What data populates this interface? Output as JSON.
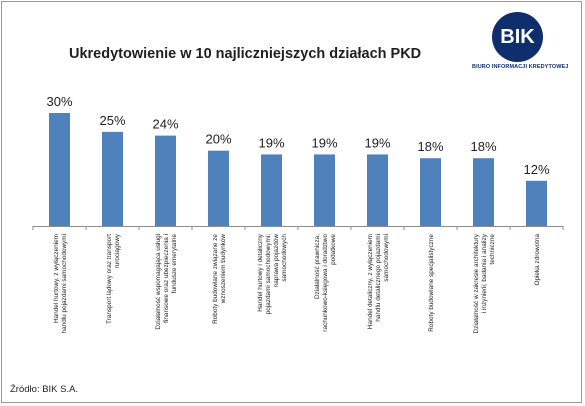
{
  "chart_data": {
    "type": "bar",
    "title": "Ukredytowienie w 10 najliczniejszych działach PKD",
    "categories": [
      [
        "Handel hurtowy, z wyłączeniem",
        "handlu pojazdami samochodowymi"
      ],
      [
        "Transport lądowy oraz transport",
        "rurociągowy"
      ],
      [
        "Działalność wspomagająca usługi",
        "finansowe oraz ubezpieczenia i",
        "fundusze emerytalne"
      ],
      [
        "Roboty budowlane związane ze",
        "wznoszeniem budynków"
      ],
      [
        "Handel hurtowy i detaliczny",
        "pojazdami samochodowymi;",
        "naprawa pojazdów",
        "samochodowych"
      ],
      [
        "Działalność prawnicza,",
        "rachunkowo-księgowa i doradztwo",
        "podatkowe"
      ],
      [
        "Handel detaliczny, z wyłączeniem",
        "handlu detalicznego pojazdami",
        "samochodowymi"
      ],
      [
        "Roboty budowlane specjalistyczne"
      ],
      [
        "Działalność w zakresie architektury",
        "i inżynierii; badania i analizy",
        "techniczne"
      ],
      [
        "Opieka zdrowotna"
      ]
    ],
    "values": [
      30,
      25,
      24,
      20,
      19,
      19,
      19,
      18,
      18,
      12
    ],
    "value_labels": [
      "30%",
      "25%",
      "24%",
      "20%",
      "19%",
      "19%",
      "19%",
      "18%",
      "18%",
      "12%"
    ],
    "ylim": [
      0,
      30
    ],
    "bar_color": "#4f81bd",
    "grid": false,
    "legend": "none"
  },
  "logo": {
    "text": "BIK",
    "subtitle": "BIURO INFORMACJI KREDYTOWEJ",
    "color": "#0f2e6c"
  },
  "source": "Źródło: BIK S.A."
}
